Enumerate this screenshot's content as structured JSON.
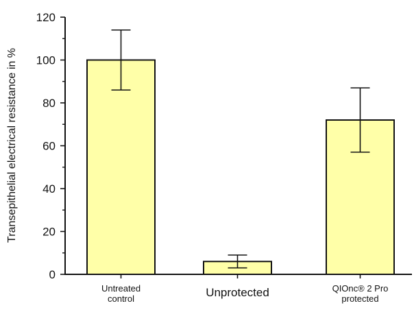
{
  "chart_data": {
    "type": "bar",
    "title": "",
    "xlabel": "",
    "ylabel": "Transepithelial electrical resistance in %",
    "ylim": [
      0,
      120
    ],
    "yticks": [
      0,
      20,
      40,
      60,
      80,
      100,
      120
    ],
    "grid": false,
    "legend": "none",
    "categories": [
      [
        "Untreated",
        "control"
      ],
      [
        "Unprotected"
      ],
      [
        "QIOnc® 2 Pro",
        "protected"
      ]
    ],
    "values": [
      100,
      6,
      72
    ],
    "error_low": [
      86,
      3,
      57
    ],
    "error_high": [
      114,
      9,
      87
    ],
    "bar_color": "#ffffa8",
    "bar_edge_color": "#111111"
  }
}
